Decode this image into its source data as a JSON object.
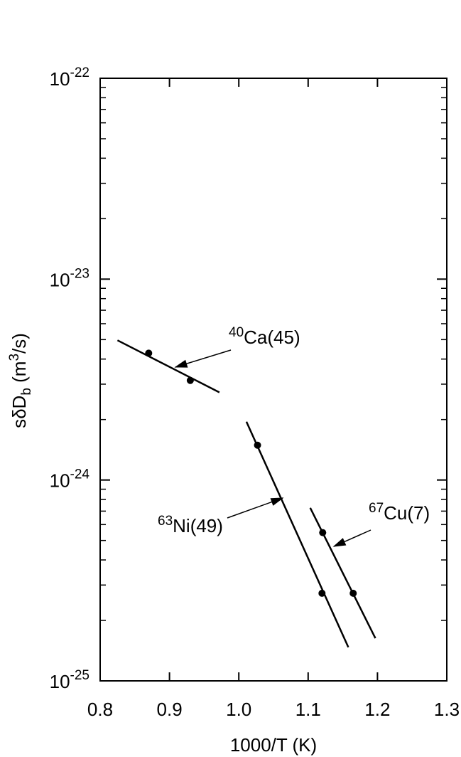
{
  "chart_data": {
    "type": "scatter",
    "x_label": "1000/T (K)",
    "y_label": [
      "sδD",
      "b",
      " (m",
      "3",
      "/s)"
    ],
    "xlim": [
      0.8,
      1.3
    ],
    "xticks": [
      0.8,
      0.9,
      {
        "value": 1,
        "label": "1.0"
      },
      1.1,
      1.2,
      1.3
    ],
    "ylim": [
      1e-25,
      1e-22
    ],
    "yticks": [
      {
        "value": 1e-25,
        "label": "10-25"
      },
      {
        "value": 1e-24,
        "label": "10-24"
      },
      {
        "value": 1e-23,
        "label": "10-23"
      },
      {
        "value": 1e-22,
        "label": "10-22"
      }
    ],
    "log_y": true,
    "grid": false,
    "series": [
      {
        "name": "40Ca(45)",
        "color": "#000000",
        "x": [
          0.87,
          0.93
        ],
        "values": [
          4.28e-24,
          3.13e-24
        ],
        "fit_x": [
          0.825,
          0.972
        ],
        "fit_values": [
          4.96e-24,
          2.73e-24
        ]
      },
      {
        "name": "63Ni(49)",
        "color": "#000000",
        "x": [
          1.027,
          1.12
        ],
        "values": [
          1.49e-24,
          2.73e-25
        ],
        "fit_x": [
          1.011,
          1.158
        ],
        "fit_values": [
          1.95e-24,
          1.47e-25
        ]
      },
      {
        "name": "67Cu(7)",
        "color": "#000000",
        "x": [
          1.121,
          1.165
        ],
        "values": [
          5.47e-25,
          2.73e-25
        ],
        "fit_x": [
          1.103,
          1.197
        ],
        "fit_values": [
          7.27e-25,
          1.63e-25
        ]
      }
    ]
  }
}
